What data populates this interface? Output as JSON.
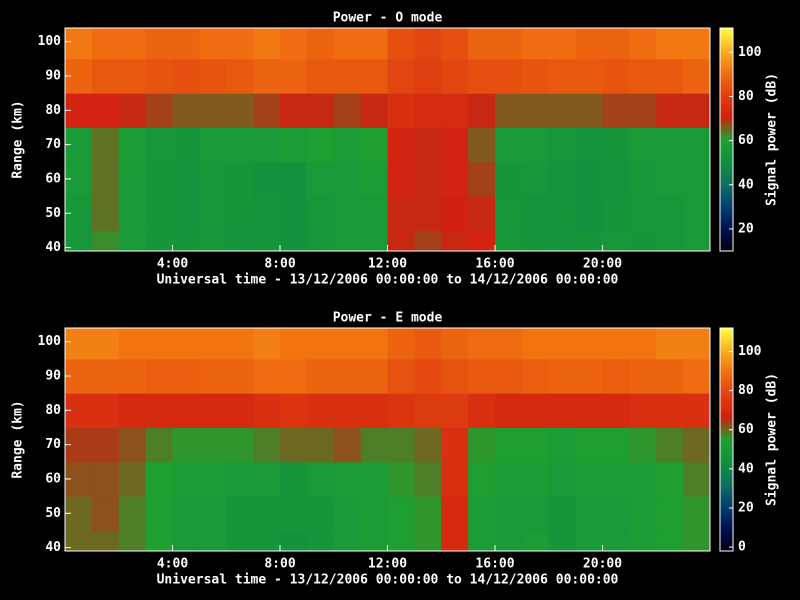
{
  "chart_data": [
    {
      "type": "heatmap",
      "title": "Power - O mode",
      "xlabel": "Universal time - 13/12/2006 00:00:00 to 14/12/2006 00:00:00",
      "ylabel": "Range (km)",
      "colorbar_label": "Signal power (dB)",
      "colormap": [
        "#000010",
        "#001050",
        "#004070",
        "#107060",
        "#109040",
        "#20a030",
        "#d02010",
        "#e04010",
        "#f07010",
        "#f8b020",
        "#ffff40"
      ],
      "x": [
        0.5,
        1.5,
        2.5,
        3.5,
        4.5,
        5.5,
        6.5,
        7.5,
        8.5,
        9.5,
        10.5,
        11.5,
        12.5,
        13.5,
        14.5,
        15.5,
        16.5,
        17.5,
        18.5,
        19.5,
        20.5,
        21.5,
        22.5,
        23.5
      ],
      "y": [
        40,
        50,
        60,
        70,
        80,
        90,
        100
      ],
      "z": [
        [
          55,
          62,
          56,
          54,
          54,
          55,
          53,
          54,
          52,
          55,
          56,
          56,
          70,
          68,
          70,
          72,
          55,
          54,
          53,
          54,
          55,
          54,
          55,
          56
        ],
        [
          55,
          64,
          56,
          54,
          53,
          55,
          54,
          53,
          52,
          55,
          56,
          57,
          70,
          70,
          71,
          70,
          55,
          53,
          54,
          52,
          54,
          55,
          55,
          56
        ],
        [
          56,
          64,
          57,
          54,
          53,
          55,
          54,
          52,
          52,
          56,
          56,
          58,
          72,
          70,
          72,
          68,
          54,
          55,
          53,
          52,
          53,
          55,
          56,
          56
        ],
        [
          57,
          64,
          58,
          55,
          54,
          56,
          56,
          56,
          58,
          60,
          58,
          60,
          72,
          70,
          72,
          66,
          56,
          56,
          55,
          53,
          54,
          56,
          57,
          57
        ],
        [
          72,
          72,
          70,
          68,
          66,
          66,
          66,
          68,
          70,
          70,
          68,
          70,
          76,
          74,
          74,
          70,
          66,
          66,
          66,
          66,
          68,
          68,
          70,
          70
        ],
        [
          88,
          86,
          86,
          85,
          84,
          85,
          86,
          88,
          88,
          86,
          86,
          86,
          82,
          80,
          82,
          84,
          84,
          85,
          86,
          86,
          85,
          86,
          86,
          88
        ],
        [
          92,
          90,
          90,
          88,
          88,
          90,
          90,
          92,
          90,
          88,
          90,
          90,
          84,
          82,
          84,
          88,
          88,
          90,
          90,
          88,
          88,
          90,
          92,
          92
        ]
      ],
      "xlim": [
        0,
        24
      ],
      "xticks": [
        {
          "value": 4,
          "label": "4:00"
        },
        {
          "value": 8,
          "label": "8:00"
        },
        {
          "value": 12,
          "label": "12:00"
        },
        {
          "value": 16,
          "label": "16:00"
        },
        {
          "value": 20,
          "label": "20:00"
        }
      ],
      "ylim": [
        39,
        104
      ],
      "yticks": [
        40,
        50,
        60,
        70,
        80,
        90,
        100
      ],
      "clim": [
        10,
        111
      ],
      "cticks": [
        20,
        40,
        60,
        80,
        100
      ]
    },
    {
      "type": "heatmap",
      "title": "Power - E mode",
      "xlabel": "Universal time - 13/12/2006 00:00:00 to 14/12/2006 00:00:00",
      "ylabel": "Range (km)",
      "colorbar_label": "Signal power (dB)",
      "colormap": [
        "#000010",
        "#001050",
        "#004070",
        "#107060",
        "#109040",
        "#20a030",
        "#d02010",
        "#e04010",
        "#f07010",
        "#f8b020",
        "#ffff40"
      ],
      "x": [
        0.5,
        1.5,
        2.5,
        3.5,
        4.5,
        5.5,
        6.5,
        7.5,
        8.5,
        9.5,
        10.5,
        11.5,
        12.5,
        13.5,
        14.5,
        15.5,
        16.5,
        17.5,
        18.5,
        19.5,
        20.5,
        21.5,
        22.5,
        23.5
      ],
      "y": [
        40,
        50,
        60,
        70,
        80,
        90,
        100
      ],
      "z": [
        [
          60,
          60,
          58,
          55,
          50,
          50,
          48,
          48,
          46,
          48,
          50,
          52,
          54,
          56,
          70,
          52,
          50,
          52,
          48,
          50,
          50,
          52,
          54,
          56
        ],
        [
          60,
          62,
          58,
          54,
          50,
          50,
          48,
          48,
          48,
          48,
          50,
          52,
          54,
          56,
          70,
          52,
          50,
          50,
          48,
          50,
          50,
          52,
          54,
          56
        ],
        [
          62,
          62,
          60,
          55,
          52,
          52,
          50,
          50,
          48,
          50,
          52,
          52,
          56,
          58,
          72,
          54,
          52,
          52,
          50,
          52,
          52,
          52,
          54,
          58
        ],
        [
          64,
          64,
          62,
          58,
          56,
          56,
          56,
          58,
          60,
          60,
          62,
          58,
          58,
          60,
          72,
          56,
          54,
          54,
          52,
          54,
          54,
          56,
          58,
          60
        ],
        [
          72,
          72,
          70,
          70,
          70,
          70,
          70,
          72,
          74,
          72,
          72,
          72,
          74,
          76,
          76,
          72,
          70,
          70,
          70,
          70,
          70,
          72,
          72,
          72
        ],
        [
          86,
          86,
          86,
          85,
          85,
          86,
          86,
          88,
          88,
          86,
          86,
          86,
          82,
          80,
          82,
          84,
          84,
          85,
          86,
          86,
          85,
          86,
          86,
          88
        ],
        [
          92,
          92,
          90,
          90,
          90,
          90,
          90,
          92,
          90,
          90,
          90,
          90,
          86,
          84,
          86,
          88,
          88,
          90,
          90,
          90,
          90,
          90,
          92,
          92
        ]
      ],
      "xlim": [
        0,
        24
      ],
      "xticks": [
        {
          "value": 4,
          "label": "4:00"
        },
        {
          "value": 8,
          "label": "8:00"
        },
        {
          "value": 12,
          "label": "12:00"
        },
        {
          "value": 16,
          "label": "16:00"
        },
        {
          "value": 20,
          "label": "20:00"
        }
      ],
      "ylim": [
        39,
        104
      ],
      "yticks": [
        40,
        50,
        60,
        70,
        80,
        90,
        100
      ],
      "clim": [
        -2,
        112
      ],
      "cticks": [
        0,
        20,
        40,
        60,
        80,
        100
      ]
    }
  ]
}
